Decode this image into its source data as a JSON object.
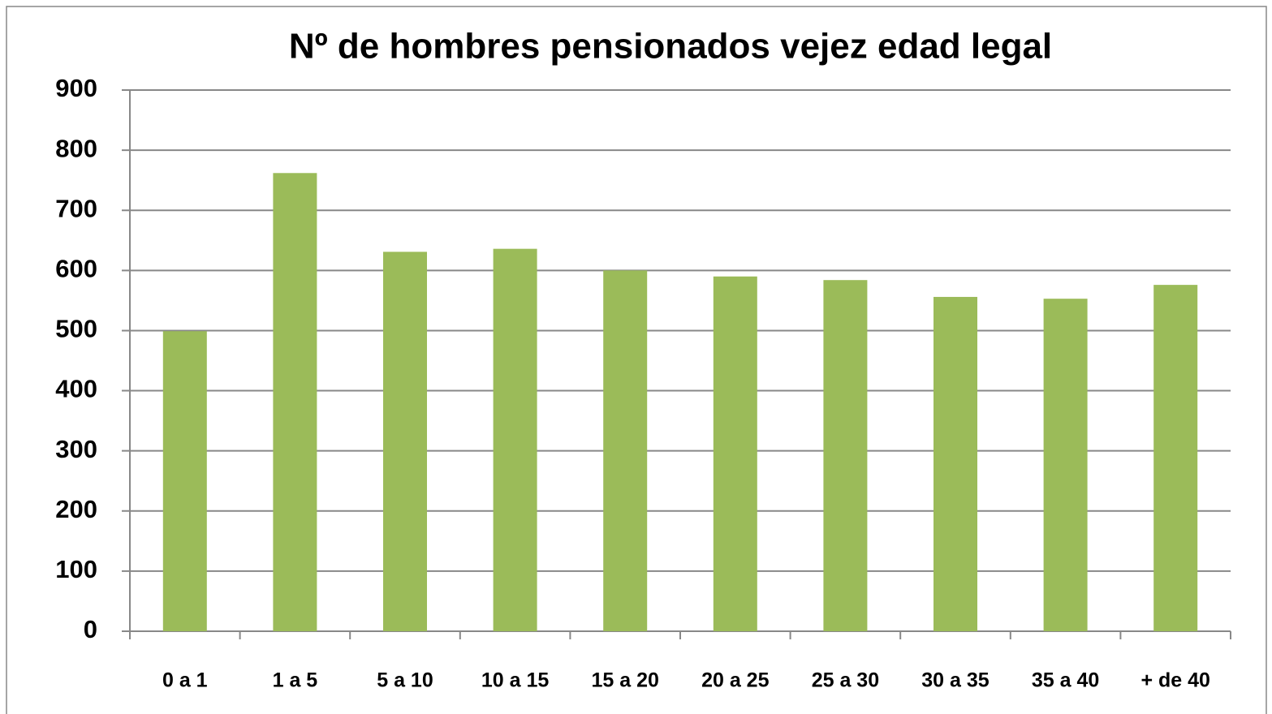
{
  "chart_data": {
    "type": "bar",
    "title": "Nº de hombres  pensionados  vejez edad legal",
    "categories": [
      "0 a 1",
      "1 a 5",
      "5 a 10",
      "10 a 15",
      "15 a 20",
      "20 a 25",
      "25 a 30",
      "30 a 35",
      "35 a 40",
      "+ de 40"
    ],
    "values": [
      499,
      762,
      631,
      636,
      600,
      590,
      584,
      556,
      553,
      576
    ],
    "color": "#9bbb59",
    "ylim": [
      0,
      900
    ],
    "yticks": [
      0,
      100,
      200,
      300,
      400,
      500,
      600,
      700,
      800,
      900
    ],
    "grid": true
  }
}
